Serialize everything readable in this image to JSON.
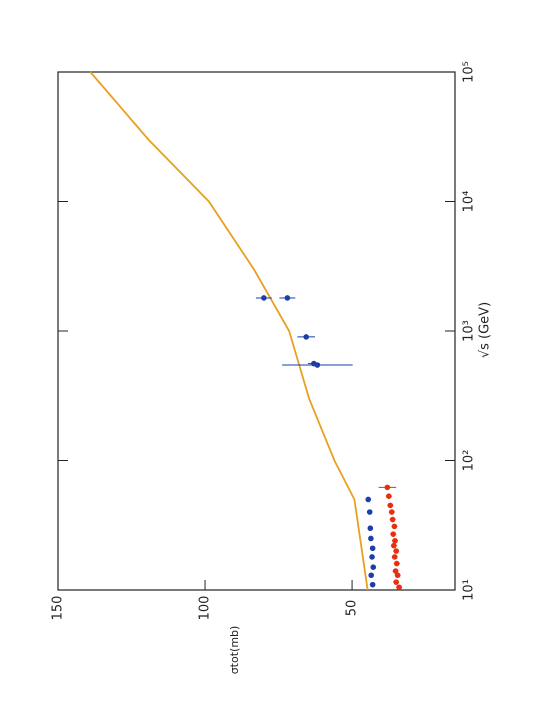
{
  "chart_data": {
    "type": "scatter",
    "x_label": "√s (GeV)",
    "y_label": "σtot(mb)",
    "xlog": true,
    "xlim": [
      10,
      100000
    ],
    "xticks": [
      {
        "value": 10,
        "label": "10¹"
      },
      {
        "value": 100,
        "label": "10²"
      },
      {
        "value": 1000,
        "label": "10³"
      },
      {
        "value": 10000,
        "label": "10⁴"
      },
      {
        "value": 100000,
        "label": "10⁵"
      }
    ],
    "ylim": [
      15,
      150
    ],
    "yticks": [
      50,
      100,
      150
    ],
    "series": [
      {
        "style": "line",
        "color": "#e8a020",
        "x": [
          10,
          50,
          100,
          300,
          1000,
          3000,
          10000,
          30000,
          100000
        ],
        "values": [
          44.7,
          49.2,
          56,
          64.6,
          71.4,
          83.4,
          98.7,
          119.2,
          139
        ]
      },
      {
        "style": "points",
        "color": "#1a3fa8",
        "x": [
          11,
          13,
          15,
          18,
          21,
          25,
          30,
          40,
          50,
          546,
          560,
          900,
          1800,
          1800
        ],
        "values": [
          43,
          43.5,
          42.8,
          43.2,
          43,
          43.6,
          43.8,
          44,
          44.5,
          61.8,
          63,
          65.6,
          72,
          80
        ],
        "errors": [
          0.8,
          0.8,
          0.8,
          0.8,
          0.8,
          0.8,
          0.8,
          0.8,
          0.8,
          12,
          2,
          3,
          2.7,
          2.7
        ]
      },
      {
        "style": "points",
        "color": "#e83010",
        "x": [
          10.5,
          11.5,
          13,
          14,
          16,
          18,
          20,
          22,
          24,
          27,
          31,
          35,
          40,
          45,
          53,
          62
        ],
        "values": [
          34,
          35,
          34.5,
          35.2,
          34.8,
          35.5,
          35,
          35.8,
          35.4,
          36,
          35.6,
          36.2,
          36.5,
          37,
          37.5,
          38
        ],
        "errors": [
          1,
          1,
          1,
          1,
          1,
          1,
          1,
          1,
          1,
          1,
          1,
          1,
          1,
          1,
          1,
          3
        ]
      }
    ]
  }
}
